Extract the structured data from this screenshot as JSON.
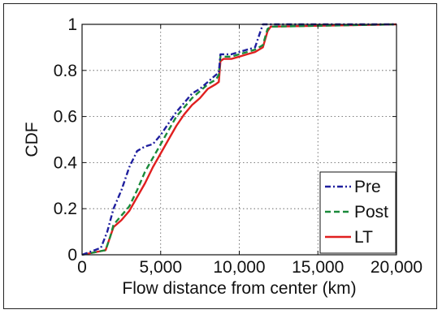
{
  "chart_data": {
    "type": "line",
    "title": "",
    "xlabel": "Flow distance from center (km)",
    "ylabel": "CDF",
    "xlim": [
      0,
      20000
    ],
    "ylim": [
      0,
      1
    ],
    "xticks": [
      0,
      5000,
      10000,
      15000,
      20000
    ],
    "xtick_labels": [
      "0",
      "5,000",
      "10,000",
      "15,000",
      "20,000"
    ],
    "yticks": [
      0,
      0.2,
      0.4,
      0.6,
      0.8,
      1
    ],
    "ytick_labels": [
      "0",
      "0.2",
      "0.4",
      "0.6",
      "0.8",
      "1"
    ],
    "grid": "dotted",
    "legend_position": "bottom-right",
    "series": [
      {
        "name": "Pre",
        "color": "#1f1f9e",
        "style": "dashdot",
        "x": [
          0,
          1200,
          1600,
          2000,
          2500,
          3000,
          3500,
          4000,
          4500,
          5000,
          5500,
          6000,
          6500,
          7000,
          7500,
          8000,
          8500,
          8700,
          8800,
          9000,
          9500,
          10000,
          10500,
          11000,
          11500,
          12000,
          20000
        ],
        "y": [
          0,
          0.03,
          0.1,
          0.2,
          0.28,
          0.38,
          0.45,
          0.47,
          0.48,
          0.52,
          0.57,
          0.62,
          0.66,
          0.7,
          0.72,
          0.75,
          0.78,
          0.79,
          0.87,
          0.87,
          0.87,
          0.88,
          0.89,
          0.9,
          1.0,
          1.0,
          1.0
        ]
      },
      {
        "name": "Post",
        "color": "#1a8a3a",
        "style": "dashed",
        "x": [
          0,
          1500,
          1800,
          2000,
          2500,
          3000,
          3500,
          4000,
          4500,
          5000,
          5500,
          6000,
          6500,
          7000,
          7500,
          8000,
          8500,
          8700,
          8800,
          9000,
          9500,
          10000,
          10500,
          11000,
          11500,
          11800,
          12000,
          20000
        ],
        "y": [
          0,
          0.02,
          0.08,
          0.13,
          0.17,
          0.21,
          0.28,
          0.36,
          0.42,
          0.48,
          0.54,
          0.6,
          0.64,
          0.68,
          0.71,
          0.74,
          0.76,
          0.78,
          0.86,
          0.86,
          0.86,
          0.87,
          0.88,
          0.89,
          0.91,
          0.98,
          0.99,
          1.0
        ]
      },
      {
        "name": "LT",
        "color": "#e01f1f",
        "style": "solid",
        "x": [
          0,
          1500,
          1800,
          2000,
          2500,
          3000,
          3500,
          4000,
          4500,
          5000,
          5500,
          6000,
          6500,
          7000,
          7500,
          8000,
          8500,
          8700,
          8800,
          9000,
          9500,
          10000,
          10500,
          11000,
          11500,
          11800,
          12000,
          20000
        ],
        "y": [
          0,
          0.02,
          0.08,
          0.12,
          0.15,
          0.19,
          0.25,
          0.31,
          0.38,
          0.44,
          0.5,
          0.56,
          0.61,
          0.65,
          0.68,
          0.72,
          0.74,
          0.75,
          0.84,
          0.85,
          0.85,
          0.86,
          0.87,
          0.88,
          0.9,
          0.97,
          0.99,
          1.0
        ]
      }
    ]
  }
}
